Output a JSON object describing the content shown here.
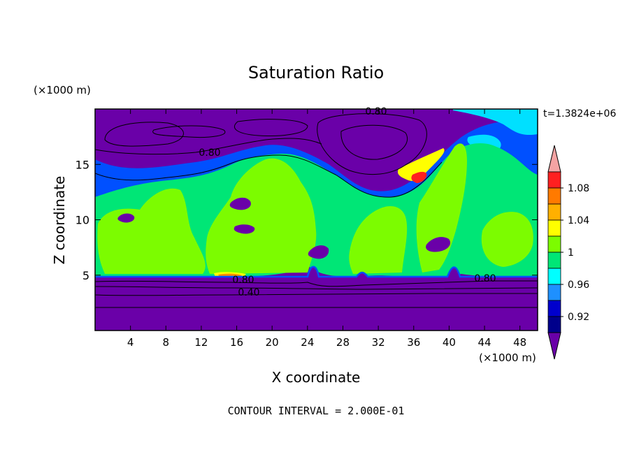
{
  "chart_data": {
    "type": "heatmap",
    "title": "Saturation Ratio",
    "xlabel": "X coordinate",
    "ylabel": "Z coordinate",
    "x_unit": "(×1000 m)",
    "y_unit": "(×1000 m)",
    "time_label": "t=1.3824e+06",
    "footer": "CONTOUR INTERVAL = 2.000E-01",
    "xlim": [
      0,
      50
    ],
    "ylim": [
      0,
      20
    ],
    "x_ticks": [
      "4",
      "8",
      "12",
      "16",
      "20",
      "24",
      "28",
      "32",
      "36",
      "40",
      "44",
      "48"
    ],
    "y_ticks": [
      "5",
      "10",
      "15"
    ],
    "contour_labels": [
      "0.80",
      "0.80",
      "0.80",
      "0.80",
      "0.40"
    ],
    "colorbar": {
      "labels": [
        "1.08",
        "1.04",
        "1",
        "0.96",
        "0.92"
      ],
      "levels": [
        {
          "color": "#f4a3a3"
        },
        {
          "color": "#ff2020"
        },
        {
          "color": "#ff7a00"
        },
        {
          "color": "#ffb000"
        },
        {
          "color": "#ffff00"
        },
        {
          "color": "#7cfc00"
        },
        {
          "color": "#00e676"
        },
        {
          "color": "#00ffff"
        },
        {
          "color": "#1e90ff"
        },
        {
          "color": "#0000cd"
        },
        {
          "color": "#00008b"
        },
        {
          "color": "#6a00a8"
        }
      ]
    },
    "colors": {
      "low": "#6a00a8",
      "band_blue": "#0050ff",
      "cyan": "#00e0ff",
      "near_one": "#00e676",
      "above_one": "#7cfc00",
      "yellow": "#ffff00",
      "orange": "#ff8c00",
      "red": "#ff2020"
    }
  }
}
